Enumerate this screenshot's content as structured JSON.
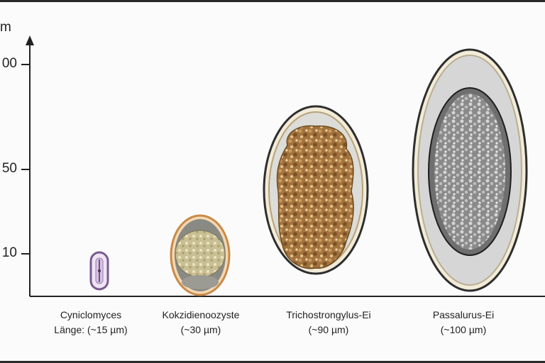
{
  "axis": {
    "unit_label": "m",
    "ticks": [
      "00",
      "50",
      "10"
    ]
  },
  "specimens": [
    {
      "name": "Cyniclomyces",
      "size": "Länge: (~15 µm)"
    },
    {
      "name": "Kokzidienoozyste",
      "size": "(~30 µm)"
    },
    {
      "name": "Trichostrongylus-Ei",
      "size": "(~90 µm)"
    },
    {
      "name": "Passalurus-Ei",
      "size": "(~100 µm)"
    }
  ],
  "colors": {
    "yeast_wall": "#7a5a8f",
    "oocyst_wall": "#d9a36a",
    "tricho_fill": "#a87a45",
    "passalurus_fill": "#9a9a9a",
    "axis": "#222222"
  }
}
